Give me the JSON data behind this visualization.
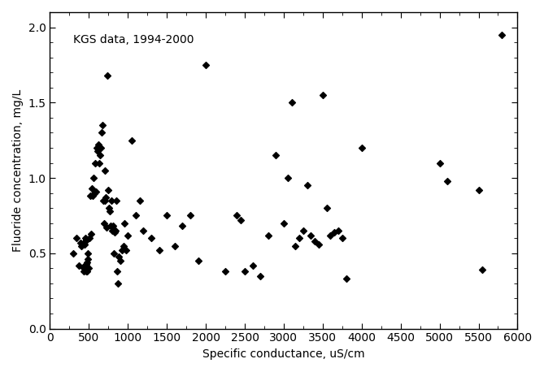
{
  "x": [
    300,
    340,
    370,
    390,
    400,
    420,
    430,
    440,
    450,
    450,
    460,
    460,
    470,
    470,
    480,
    480,
    490,
    490,
    500,
    510,
    520,
    530,
    540,
    550,
    560,
    570,
    580,
    590,
    600,
    610,
    620,
    630,
    640,
    650,
    660,
    670,
    680,
    690,
    700,
    710,
    720,
    730,
    740,
    750,
    760,
    770,
    780,
    790,
    800,
    810,
    820,
    830,
    840,
    850,
    860,
    870,
    880,
    900,
    920,
    940,
    960,
    980,
    1000,
    1050,
    1100,
    1150,
    1200,
    1300,
    1400,
    1500,
    1600,
    1700,
    1800,
    1900,
    2000,
    2250,
    2400,
    2450,
    2500,
    2600,
    2700,
    2800,
    2900,
    3000,
    3050,
    3100,
    3150,
    3200,
    3250,
    3300,
    3350,
    3400,
    3450,
    3500,
    3550,
    3600,
    3650,
    3700,
    3750,
    3800,
    4000,
    5000,
    5100,
    5500,
    5550,
    5800
  ],
  "y": [
    0.5,
    0.6,
    0.42,
    0.57,
    0.55,
    0.41,
    0.38,
    0.56,
    0.58,
    0.6,
    0.38,
    0.43,
    0.42,
    0.59,
    0.38,
    0.44,
    0.46,
    0.5,
    0.4,
    0.6,
    0.88,
    0.63,
    0.93,
    0.88,
    1.0,
    0.9,
    1.1,
    0.91,
    1.2,
    1.18,
    1.22,
    1.1,
    1.15,
    1.2,
    1.3,
    1.35,
    0.85,
    0.7,
    1.05,
    0.85,
    0.87,
    0.67,
    1.68,
    0.92,
    0.8,
    0.78,
    0.68,
    0.85,
    0.65,
    0.68,
    0.5,
    0.64,
    0.65,
    0.85,
    0.38,
    0.3,
    0.48,
    0.45,
    0.52,
    0.55,
    0.7,
    0.52,
    0.62,
    1.25,
    0.75,
    0.85,
    0.65,
    0.6,
    0.52,
    0.75,
    0.55,
    0.68,
    0.75,
    0.45,
    1.75,
    0.38,
    0.75,
    0.72,
    0.38,
    0.42,
    0.35,
    0.62,
    1.15,
    0.7,
    1.0,
    1.5,
    0.55,
    0.6,
    0.65,
    0.95,
    0.62,
    0.58,
    0.56,
    1.55,
    0.8,
    0.62,
    0.64,
    0.65,
    0.6,
    0.33,
    1.2,
    1.1,
    0.98,
    0.92,
    0.39,
    1.95
  ],
  "xlabel": "Specific conductance, uS/cm",
  "ylabel": "Fluoride concentration, mg/L",
  "annotation": "KGS data, 1994-2000",
  "xlim": [
    0,
    6000
  ],
  "ylim": [
    0.0,
    2.1
  ],
  "xticks": [
    0,
    500,
    1000,
    1500,
    2000,
    2500,
    3000,
    3500,
    4000,
    4500,
    5000,
    5500,
    6000
  ],
  "yticks": [
    0.0,
    0.5,
    1.0,
    1.5,
    2.0
  ],
  "marker_color": "#000000",
  "marker_size": 16,
  "background_color": "#ffffff"
}
